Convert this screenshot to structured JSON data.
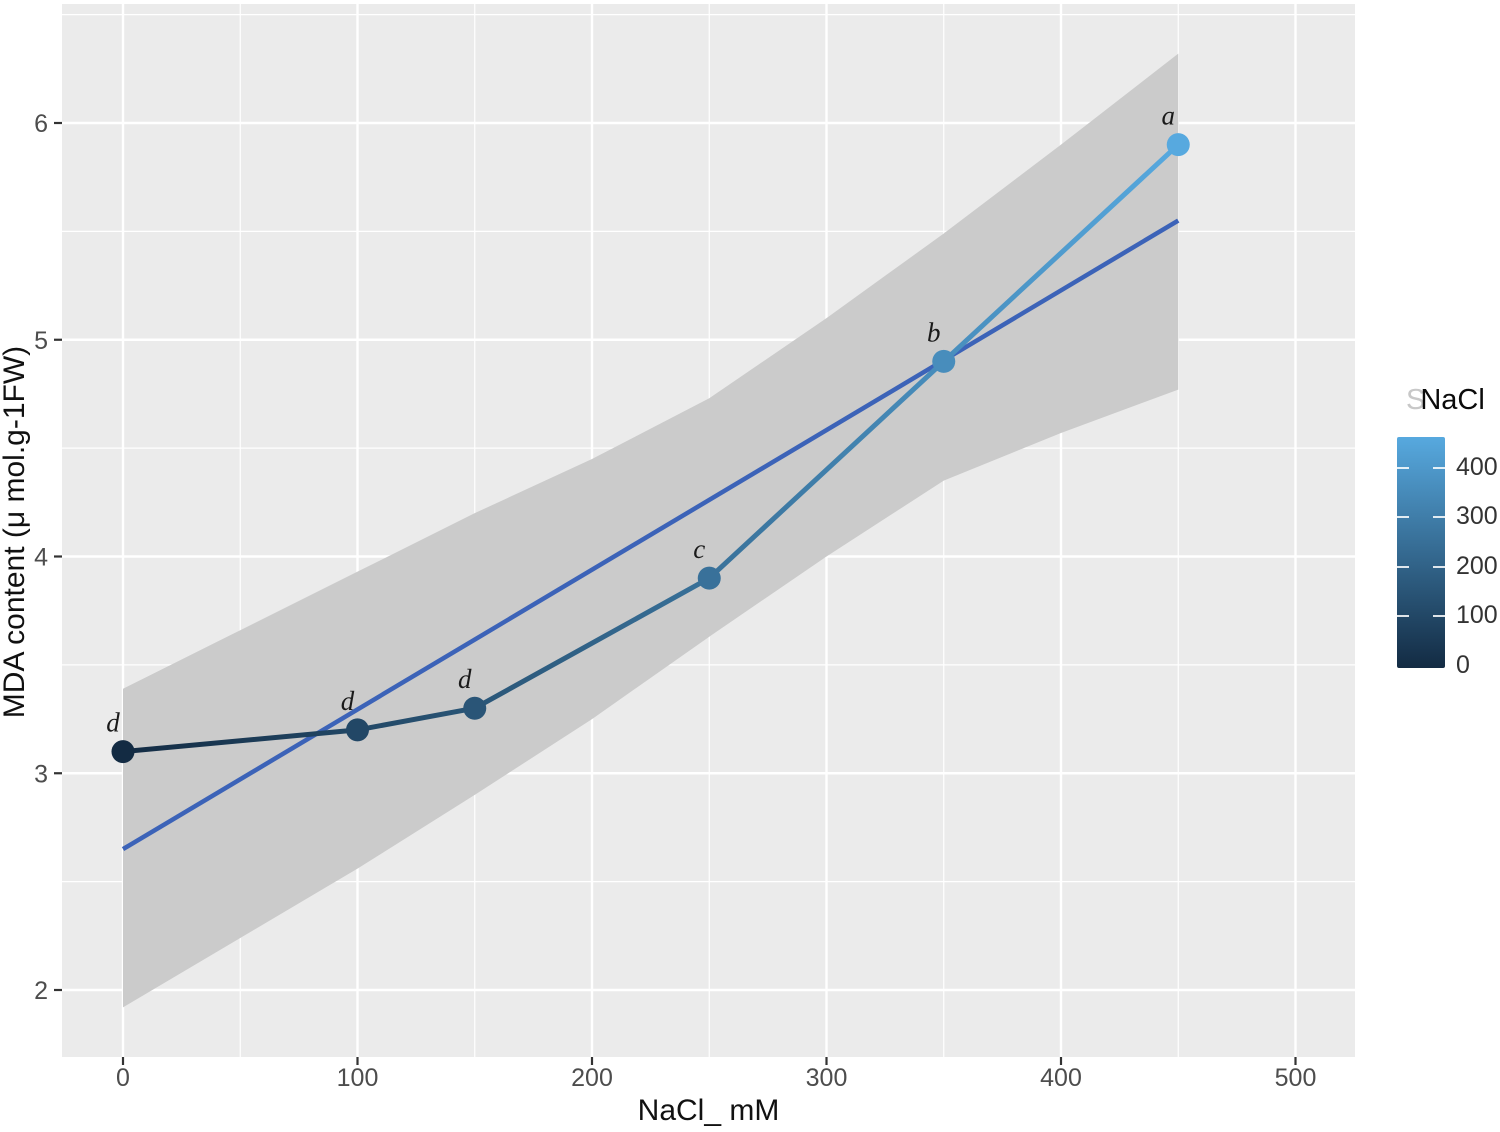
{
  "figure": {
    "background": "#FFFFFF",
    "panel_background": "#EBEBEB",
    "grid_color": "#FFFFFF",
    "tick_color": "#333333",
    "tick_text_color": "#4D4D4D",
    "point_label_color": "#1A1A1A"
  },
  "axes": {
    "x": {
      "title": "NaCl_ mM",
      "tick_labels": [
        "0",
        "100",
        "200",
        "300",
        "400",
        "500"
      ],
      "tick_values": [
        0,
        100,
        200,
        300,
        400,
        500
      ],
      "minor_values": [
        50,
        150,
        250,
        350,
        450
      ]
    },
    "y": {
      "title": "MDA content (μ mol.g-1FW)",
      "tick_labels": [
        "2",
        "3",
        "4",
        "5",
        "6"
      ],
      "tick_values": [
        2,
        3,
        4,
        5,
        6
      ],
      "minor_values": [
        2.5,
        3.5,
        4.5,
        5.5,
        6.5
      ]
    }
  },
  "legend": {
    "title": "NaCl",
    "ghost_prefix": "S",
    "tick_labels": [
      "400",
      "300",
      "200",
      "100",
      "0"
    ],
    "tick_values": [
      400,
      300,
      200,
      100,
      0
    ],
    "gradient_low": "#132B43",
    "gradient_high": "#57A9DF"
  },
  "chart_data": {
    "type": "line",
    "title": "",
    "xlabel": "NaCl_ mM",
    "ylabel": "MDA content (μ mol.g-1FW)",
    "xlim": [
      -26,
      525
    ],
    "ylim": [
      1.69,
      6.53
    ],
    "grid": true,
    "legend_position": "right",
    "color_scale": {
      "name": "NaCl",
      "low": "#132B43",
      "high": "#57A9DF",
      "domain": [
        0,
        450
      ],
      "legend_ticks": [
        0,
        100,
        200,
        300,
        400
      ]
    },
    "series": [
      {
        "name": "observed MDA",
        "type": "scatter-line",
        "x": [
          0,
          100,
          150,
          250,
          350,
          450
        ],
        "y": [
          3.1,
          3.2,
          3.3,
          3.9,
          4.9,
          5.9
        ],
        "point_labels": [
          "d",
          "d",
          "d",
          "c",
          "b",
          "a"
        ],
        "colored_by": "x",
        "point_radius": 11.5,
        "line_width": 5
      },
      {
        "name": "linear fit",
        "type": "line",
        "x": [
          0,
          450
        ],
        "y": [
          2.65,
          5.55
        ],
        "color": "#3C63B8",
        "line_width": 4.5
      },
      {
        "name": "confidence band",
        "type": "area",
        "x": [
          0,
          50,
          100,
          150,
          200,
          250,
          300,
          350,
          400,
          450
        ],
        "y_upper": [
          3.39,
          3.66,
          3.93,
          4.2,
          4.45,
          4.73,
          5.1,
          5.49,
          5.9,
          6.32
        ],
        "y_lower": [
          1.92,
          2.24,
          2.56,
          2.9,
          3.25,
          3.63,
          4.0,
          4.35,
          4.57,
          4.77
        ],
        "color": "#CBCBCB"
      }
    ]
  }
}
